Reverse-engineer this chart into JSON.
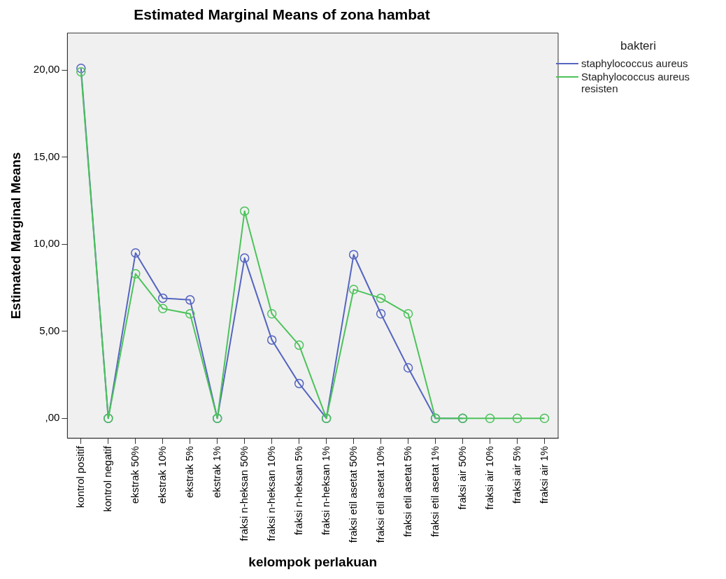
{
  "chart_data": {
    "type": "line",
    "title": "Estimated Marginal Means of zona hambat",
    "xlabel": "kelompok perlakuan",
    "ylabel": "Estimated Marginal Means",
    "legend_title": "bakteri",
    "categories": [
      "kontrol positif",
      "kontrol negatif",
      "ekstrak 50%",
      "ekstrak 10%",
      "ekstrak 5%",
      "ekstrak 1%",
      "fraksi n-heksan 50%",
      "fraksi n-heksan 10%",
      "fraksi n-heksan 5%",
      "fraksi n-heksan 1%",
      "fraksi etil asetat 50%",
      "fraksi etil asetat 10%",
      "fraksi etil asetat 5%",
      "fraksi etil asetat 1%",
      "fraksi air 50%",
      "fraksi air 10%",
      "fraksi air 5%",
      "fraksi air 1%"
    ],
    "series": [
      {
        "name": "staphylococcus aureus",
        "color": "#5565c0",
        "values": [
          20.1,
          0,
          9.5,
          6.9,
          6.8,
          0,
          9.2,
          4.5,
          2.0,
          0,
          9.4,
          6.0,
          2.9,
          0,
          0,
          null,
          null,
          null
        ]
      },
      {
        "name": "Staphylococcus aureus resisten",
        "color": "#4cc35a",
        "values": [
          19.9,
          0,
          8.3,
          6.3,
          6.0,
          0,
          11.9,
          6.0,
          4.2,
          0,
          7.4,
          6.9,
          6.0,
          0,
          0,
          0,
          0,
          0
        ]
      }
    ],
    "ylim": [
      -1.15,
      22.13
    ],
    "yticks": [
      {
        "value": 0,
        "label": ",00"
      },
      {
        "value": 5,
        "label": "5,00"
      },
      {
        "value": 10,
        "label": "10,00"
      },
      {
        "value": 15,
        "label": "15,00"
      },
      {
        "value": 20,
        "label": "20,00"
      }
    ],
    "grid": false,
    "legend": "top right",
    "marker": "circle",
    "line_style": "solid"
  }
}
